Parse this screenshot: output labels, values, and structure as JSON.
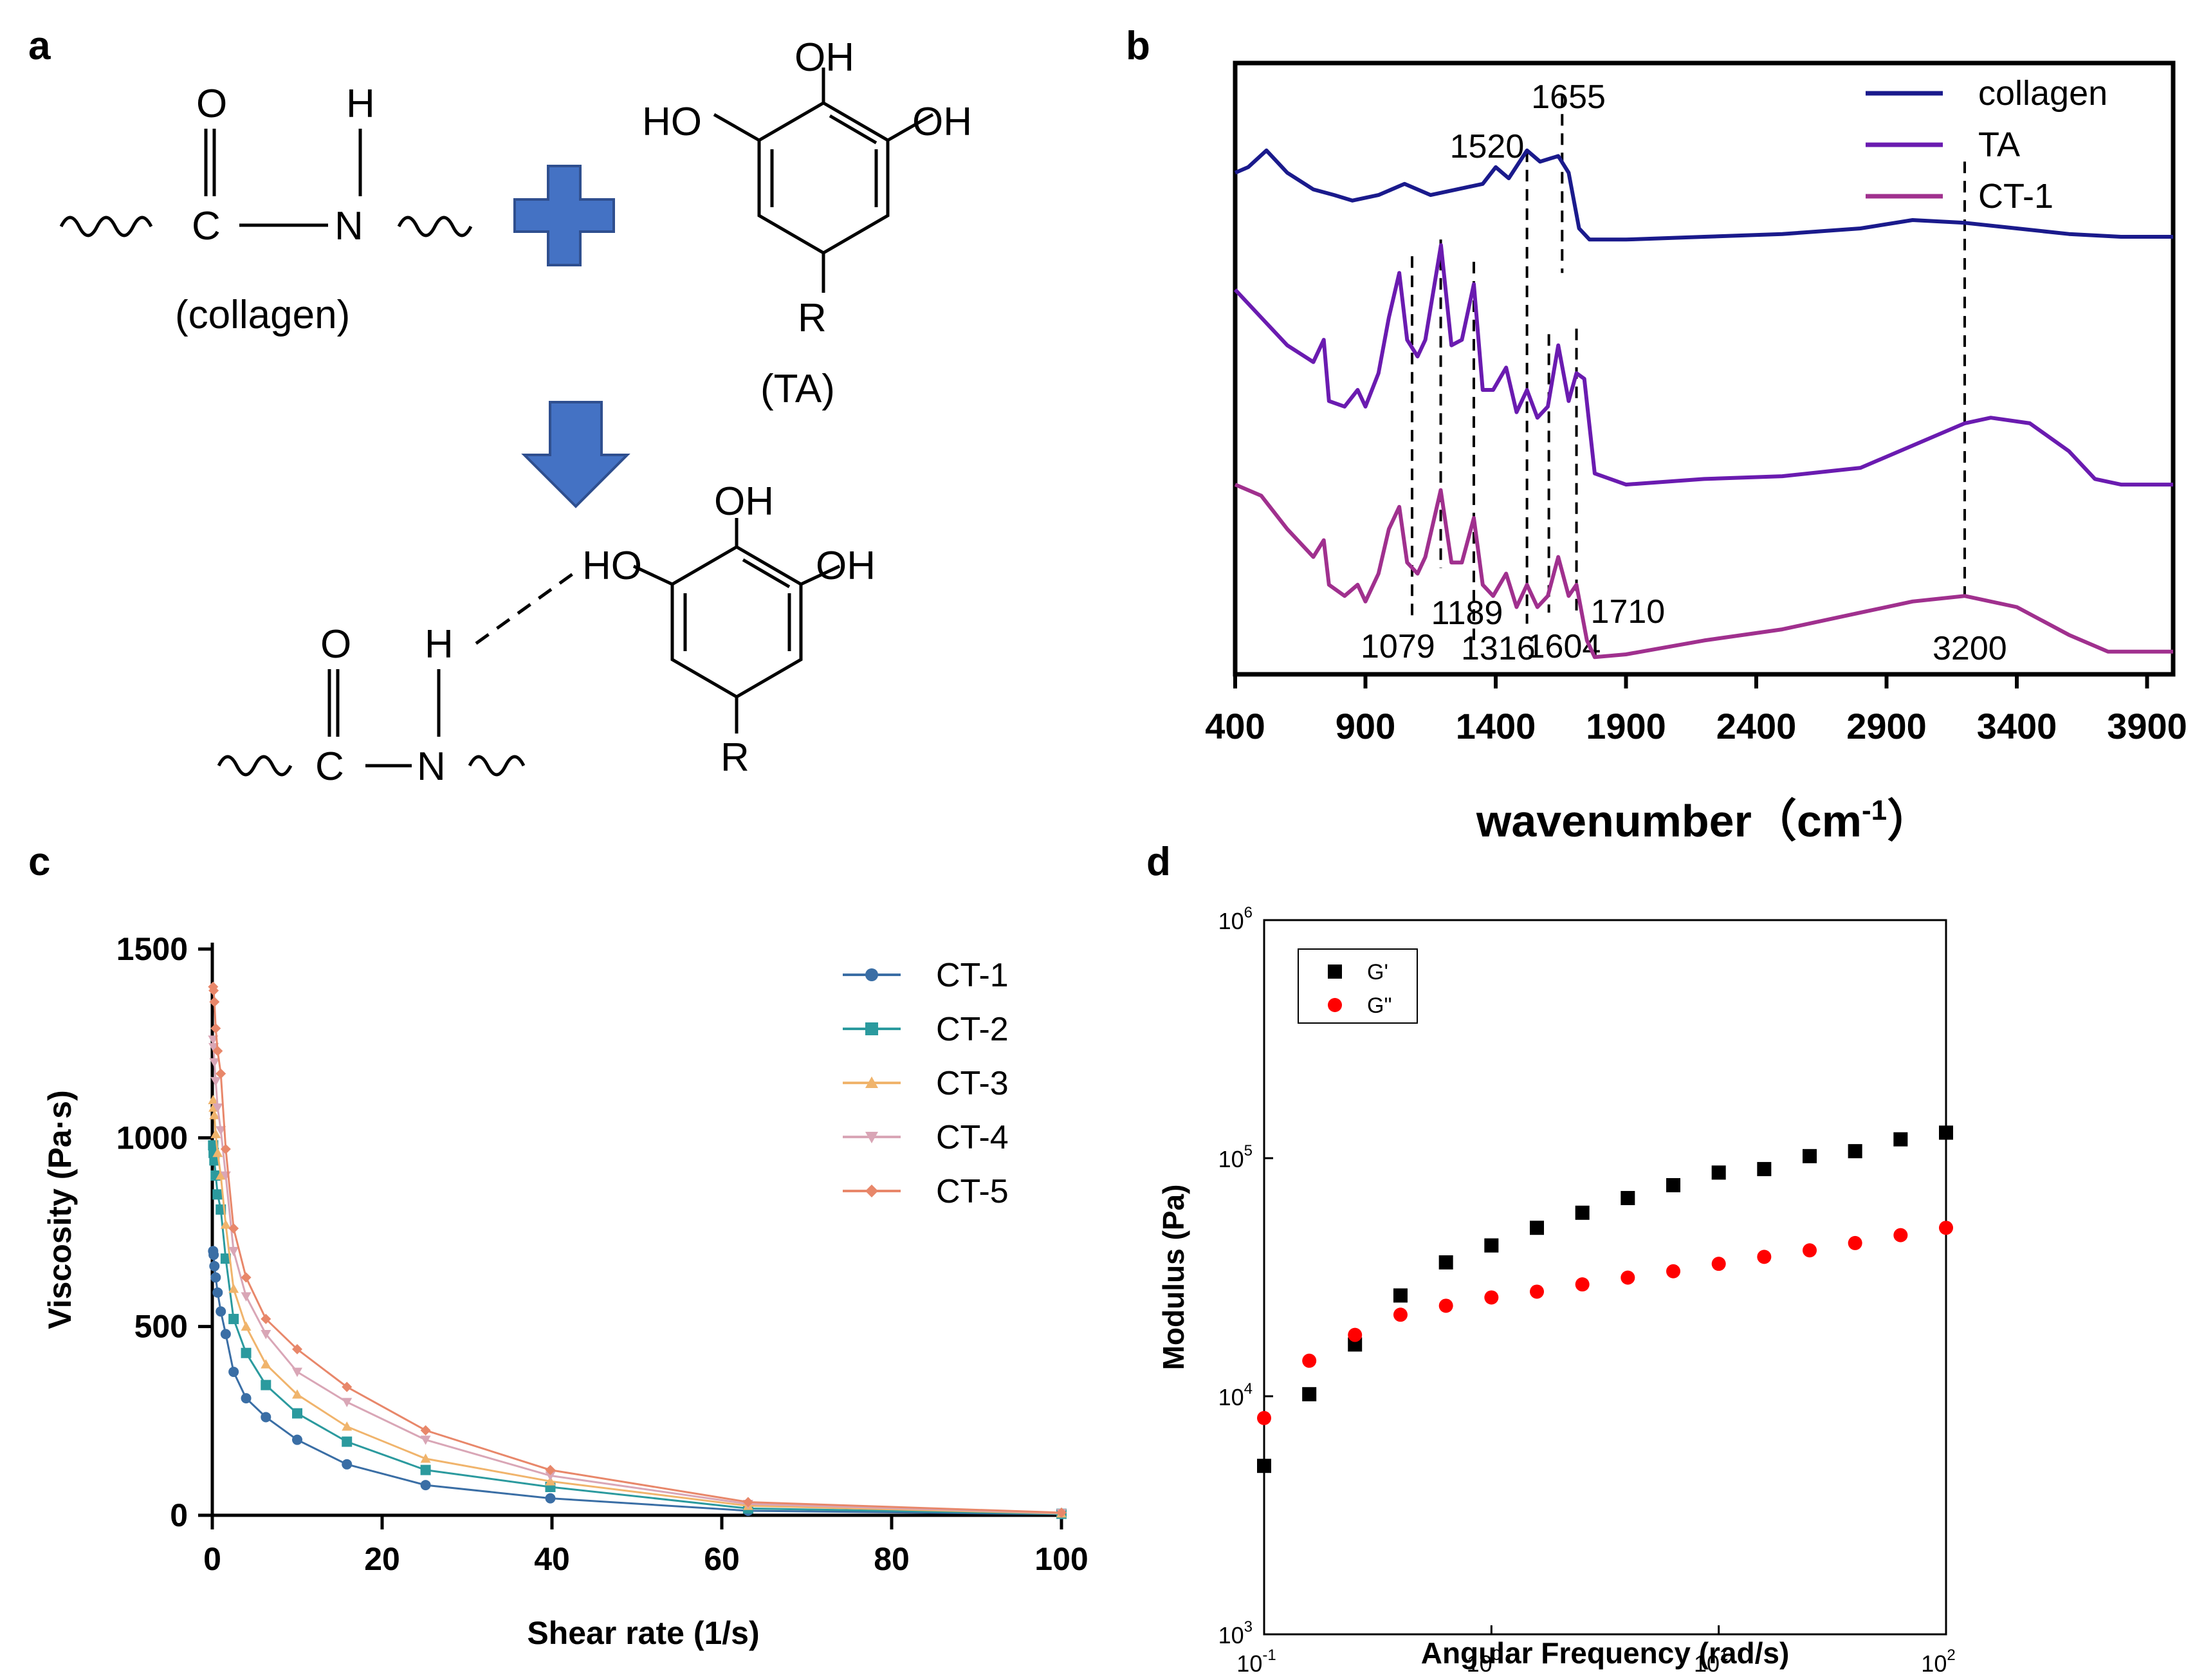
{
  "panel_labels": {
    "a": "a",
    "b": "b",
    "c": "c",
    "d": "d"
  },
  "scheme": {
    "O": "O",
    "H": "H",
    "C": "C",
    "N": "N",
    "R": "R",
    "OH": "OH",
    "HO": "HO",
    "collagen_label": "(collagen)",
    "ta_label": "(TA)",
    "plus_color": "#4472C4",
    "arrow_color": "#4472C4"
  },
  "chart_data": [
    {
      "id": "b",
      "type": "line",
      "title": "",
      "xlabel": "wavenumber (cm⁻¹)",
      "xlabel_main": "wavenumber",
      "xlabel_unit": "cm",
      "xlabel_exp": "-1",
      "ylabel": "",
      "xlim": [
        400,
        4000
      ],
      "xticks": [
        400,
        900,
        1400,
        1900,
        2400,
        2900,
        3400,
        3900
      ],
      "tick_labels": [
        "400",
        "900",
        "1400",
        "1900",
        "2400",
        "2900",
        "3400",
        "3900"
      ],
      "series": [
        {
          "name": "collagen",
          "color": "#1a1a8c",
          "points": [
            [
              400,
              0.86
            ],
            [
              450,
              0.87
            ],
            [
              520,
              0.9
            ],
            [
              600,
              0.86
            ],
            [
              700,
              0.83
            ],
            [
              780,
              0.82
            ],
            [
              850,
              0.81
            ],
            [
              950,
              0.82
            ],
            [
              1050,
              0.84
            ],
            [
              1150,
              0.82
            ],
            [
              1250,
              0.83
            ],
            [
              1350,
              0.84
            ],
            [
              1400,
              0.87
            ],
            [
              1450,
              0.85
            ],
            [
              1520,
              0.9
            ],
            [
              1570,
              0.88
            ],
            [
              1640,
              0.89
            ],
            [
              1680,
              0.86
            ],
            [
              1720,
              0.76
            ],
            [
              1760,
              0.74
            ],
            [
              1900,
              0.74
            ],
            [
              2200,
              0.745
            ],
            [
              2500,
              0.75
            ],
            [
              2800,
              0.76
            ],
            [
              3000,
              0.775
            ],
            [
              3200,
              0.77
            ],
            [
              3400,
              0.76
            ],
            [
              3600,
              0.75
            ],
            [
              3800,
              0.745
            ],
            [
              4000,
              0.745
            ]
          ]
        },
        {
          "name": "TA",
          "color": "#6a1bb0",
          "points": [
            [
              400,
              0.65
            ],
            [
              500,
              0.6
            ],
            [
              600,
              0.55
            ],
            [
              700,
              0.52
            ],
            [
              740,
              0.56
            ],
            [
              760,
              0.45
            ],
            [
              820,
              0.44
            ],
            [
              870,
              0.47
            ],
            [
              900,
              0.44
            ],
            [
              950,
              0.5
            ],
            [
              990,
              0.6
            ],
            [
              1030,
              0.68
            ],
            [
              1060,
              0.56
            ],
            [
              1100,
              0.53
            ],
            [
              1130,
              0.56
            ],
            [
              1190,
              0.73
            ],
            [
              1230,
              0.55
            ],
            [
              1270,
              0.56
            ],
            [
              1316,
              0.66
            ],
            [
              1350,
              0.47
            ],
            [
              1390,
              0.47
            ],
            [
              1440,
              0.51
            ],
            [
              1480,
              0.43
            ],
            [
              1520,
              0.47
            ],
            [
              1560,
              0.42
            ],
            [
              1600,
              0.44
            ],
            [
              1640,
              0.55
            ],
            [
              1680,
              0.45
            ],
            [
              1710,
              0.5
            ],
            [
              1740,
              0.49
            ],
            [
              1780,
              0.32
            ],
            [
              1900,
              0.3
            ],
            [
              2200,
              0.31
            ],
            [
              2500,
              0.315
            ],
            [
              2800,
              0.33
            ],
            [
              3000,
              0.37
            ],
            [
              3200,
              0.41
            ],
            [
              3300,
              0.42
            ],
            [
              3450,
              0.41
            ],
            [
              3600,
              0.36
            ],
            [
              3700,
              0.31
            ],
            [
              3800,
              0.3
            ],
            [
              4000,
              0.3
            ]
          ]
        },
        {
          "name": "CT-1",
          "color": "#a0308e",
          "points": [
            [
              400,
              0.3
            ],
            [
              500,
              0.28
            ],
            [
              600,
              0.22
            ],
            [
              700,
              0.17
            ],
            [
              740,
              0.2
            ],
            [
              760,
              0.12
            ],
            [
              820,
              0.1
            ],
            [
              870,
              0.12
            ],
            [
              900,
              0.09
            ],
            [
              950,
              0.14
            ],
            [
              990,
              0.22
            ],
            [
              1030,
              0.26
            ],
            [
              1060,
              0.16
            ],
            [
              1100,
              0.14
            ],
            [
              1130,
              0.17
            ],
            [
              1189,
              0.29
            ],
            [
              1230,
              0.16
            ],
            [
              1270,
              0.16
            ],
            [
              1316,
              0.24
            ],
            [
              1350,
              0.12
            ],
            [
              1390,
              0.1
            ],
            [
              1440,
              0.14
            ],
            [
              1480,
              0.08
            ],
            [
              1520,
              0.12
            ],
            [
              1560,
              0.08
            ],
            [
              1600,
              0.1
            ],
            [
              1640,
              0.17
            ],
            [
              1680,
              0.1
            ],
            [
              1710,
              0.12
            ],
            [
              1750,
              0.02
            ],
            [
              1780,
              -0.01
            ],
            [
              1900,
              -0.005
            ],
            [
              2200,
              0.02
            ],
            [
              2500,
              0.04
            ],
            [
              2800,
              0.07
            ],
            [
              3000,
              0.09
            ],
            [
              3200,
              0.1
            ],
            [
              3400,
              0.08
            ],
            [
              3600,
              0.03
            ],
            [
              3750,
              0.0
            ],
            [
              4000,
              0.0
            ]
          ]
        }
      ],
      "reference_lines": [
        {
          "x": 1079,
          "label": "1079",
          "y_top": 0.71,
          "y_bot": 0.06
        },
        {
          "x": 1189,
          "label": "1189",
          "y_top": 0.74,
          "y_bot": 0.15
        },
        {
          "x": 1316,
          "label": "1316",
          "y_top": 0.7,
          "y_bot": 0.01
        },
        {
          "x": 1520,
          "label": "1520",
          "y_top": 0.9,
          "y_bot": 0.05
        },
        {
          "x": 1604,
          "label": "1604",
          "y_top": 0.57,
          "y_bot": 0.07
        },
        {
          "x": 1655,
          "label": "1655",
          "y_top": 1.0,
          "y_bot": 0.68
        },
        {
          "x": 1710,
          "label": "1710",
          "y_top": 0.58,
          "y_bot": 0.06
        },
        {
          "x": 3200,
          "label": "3200",
          "y_top": 0.88,
          "y_bot": 0.1
        }
      ],
      "legend": {
        "position": "top-right",
        "entries": [
          "collagen",
          "TA",
          "CT-1"
        ]
      }
    },
    {
      "id": "c",
      "type": "line",
      "title": "",
      "xlabel": "Shear rate (1/s)",
      "ylabel": "Viscosity (Pa·s)",
      "xlim": [
        0,
        100
      ],
      "ylim": [
        0,
        1500
      ],
      "xticks": [
        0,
        20,
        40,
        60,
        80,
        100
      ],
      "xtick_labels": [
        "0",
        "20",
        "40",
        "60",
        "80",
        "100"
      ],
      "yticks": [
        0,
        500,
        1000,
        1500
      ],
      "ytick_labels": [
        "0",
        "500",
        "1000",
        "1500"
      ],
      "x": [
        0.1,
        0.16,
        0.25,
        0.4,
        0.63,
        1,
        1.58,
        2.51,
        3.98,
        6.31,
        10,
        15.85,
        25.12,
        39.81,
        63.1,
        100
      ],
      "series": [
        {
          "name": "CT-1",
          "color": "#3a6ea5",
          "marker": "circle",
          "values": [
            700,
            690,
            660,
            630,
            590,
            540,
            480,
            380,
            310,
            260,
            200,
            135,
            80,
            45,
            12,
            3
          ]
        },
        {
          "name": "CT-2",
          "color": "#2b9a9e",
          "marker": "square",
          "values": [
            980,
            960,
            940,
            900,
            850,
            810,
            680,
            520,
            430,
            345,
            270,
            195,
            120,
            75,
            18,
            4
          ]
        },
        {
          "name": "CT-3",
          "color": "#f0b46c",
          "marker": "triangle-up",
          "values": [
            1100,
            1080,
            1060,
            1010,
            960,
            900,
            770,
            600,
            500,
            400,
            320,
            235,
            150,
            90,
            25,
            5
          ]
        },
        {
          "name": "CT-4",
          "color": "#d9a6b6",
          "marker": "triangle-down",
          "values": [
            1260,
            1240,
            1200,
            1150,
            1080,
            1020,
            900,
            700,
            580,
            480,
            380,
            300,
            200,
            105,
            30,
            6
          ]
        },
        {
          "name": "CT-5",
          "color": "#e8876a",
          "marker": "diamond",
          "values": [
            1400,
            1390,
            1360,
            1290,
            1230,
            1170,
            970,
            760,
            630,
            520,
            440,
            340,
            225,
            120,
            35,
            7
          ]
        }
      ],
      "legend": {
        "position": "top-right",
        "entries": [
          "CT-1",
          "CT-2",
          "CT-3",
          "CT-4",
          "CT-5"
        ]
      }
    },
    {
      "id": "d",
      "type": "scatter",
      "title": "",
      "xlabel": "Angular Frequency (rad/s)",
      "ylabel": "Modulus (Pa)",
      "xscale": "log",
      "yscale": "log",
      "xlim": [
        0.1,
        100
      ],
      "ylim": [
        1000,
        1000000
      ],
      "xtick_exponents": [
        "-1",
        "0",
        "1",
        "2"
      ],
      "ytick_exponents": [
        "3",
        "4",
        "5",
        "6"
      ],
      "tick_base": "10",
      "x": [
        0.1,
        0.158,
        0.251,
        0.398,
        0.631,
        1,
        1.585,
        2.512,
        3.981,
        6.31,
        10,
        15.85,
        25.12,
        39.81,
        63.1,
        100
      ],
      "series": [
        {
          "name": "G'",
          "color": "#000000",
          "marker": "square",
          "values": [
            5100,
            10200,
            16500,
            26500,
            36500,
            43000,
            51000,
            59000,
            68000,
            77000,
            87000,
            90000,
            102000,
            107000,
            120000,
            128000
          ]
        },
        {
          "name": "G\"",
          "color": "#ff0000",
          "marker": "circle",
          "values": [
            8100,
            14100,
            18100,
            22000,
            24000,
            26000,
            27500,
            29500,
            31500,
            33500,
            36000,
            38500,
            41000,
            44000,
            47500,
            51000
          ]
        }
      ],
      "legend": {
        "position": "top-left",
        "entries": [
          "G'",
          "G\""
        ]
      }
    }
  ]
}
